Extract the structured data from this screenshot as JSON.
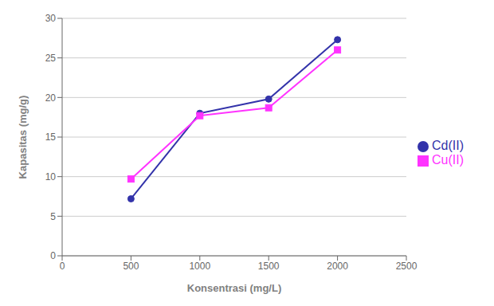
{
  "chart_data": {
    "type": "line",
    "x": [
      500,
      1000,
      1500,
      2000
    ],
    "series": [
      {
        "name": "Cd(II)",
        "color": "#3333aa",
        "marker": "circle",
        "values": [
          7.2,
          18.0,
          19.8,
          27.3
        ]
      },
      {
        "name": "Cu(II)",
        "color": "#FF33FF",
        "marker": "square",
        "values": [
          9.7,
          17.7,
          18.7,
          26.0
        ]
      }
    ],
    "xlabel": "Konsentrasi (mg/L)",
    "ylabel": "Kapasitas (mg/g)",
    "xlim": [
      0,
      2500
    ],
    "ylim": [
      0,
      30
    ],
    "xticks": [
      0,
      500,
      1000,
      1500,
      2000,
      2500
    ],
    "yticks": [
      0,
      5,
      10,
      15,
      20,
      25,
      30
    ],
    "grid": "y",
    "legend": "right"
  }
}
